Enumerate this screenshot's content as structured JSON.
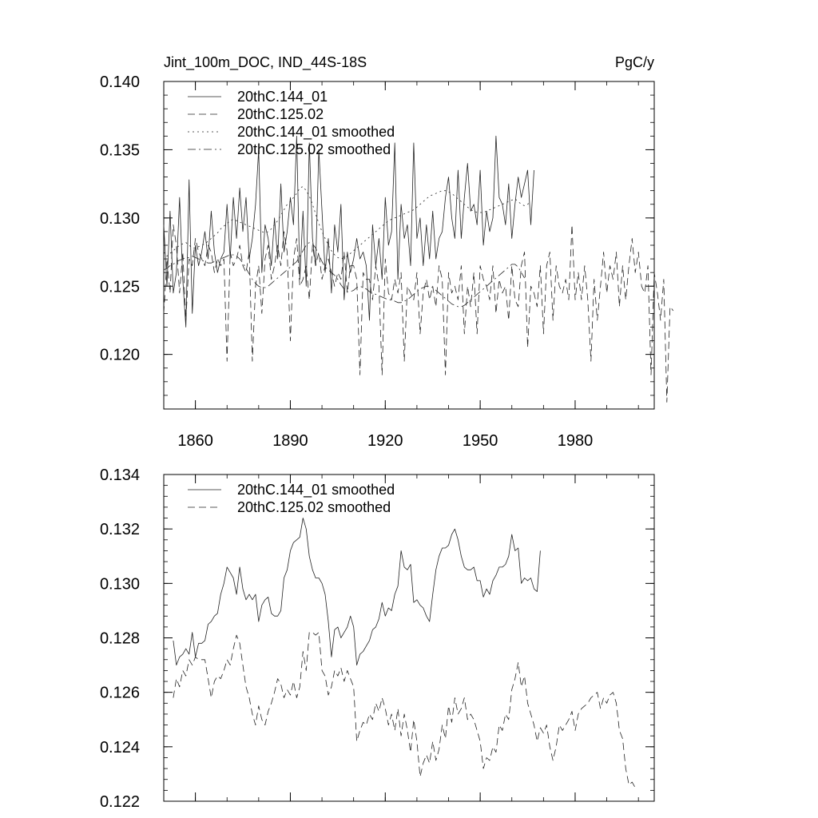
{
  "chart_data": [
    {
      "type": "line",
      "title": "Jint_100m_DOC, IND_44S-18S",
      "units": "PgC/y",
      "xlim": [
        1850,
        2005
      ],
      "ylim": [
        0.116,
        0.14
      ],
      "x_ticks": [
        1860,
        1890,
        1920,
        1950,
        1980
      ],
      "y_ticks": [
        0.12,
        0.125,
        0.13,
        0.135,
        0.14
      ],
      "y_tick_labels": [
        "0.120",
        "0.125",
        "0.130",
        "0.135",
        "0.140"
      ],
      "legend_position": "top-left",
      "series": [
        {
          "name": "20thC.144_01",
          "style": "solid",
          "x_start": 1850,
          "values": [
            0.1295,
            0.125,
            0.1305,
            0.1245,
            0.126,
            0.1315,
            0.1255,
            0.122,
            0.1328,
            0.123,
            0.128,
            0.1265,
            0.1275,
            0.129,
            0.127,
            0.1305,
            0.1275,
            0.126,
            0.127,
            0.1275,
            0.131,
            0.127,
            0.1315,
            0.1285,
            0.1322,
            0.129,
            0.1315,
            0.127,
            0.1285,
            0.131,
            0.135,
            0.126,
            0.1295,
            0.1285,
            0.1265,
            0.13,
            0.127,
            0.1325,
            0.1275,
            0.129,
            0.1315,
            0.1295,
            0.136,
            0.1255,
            0.1305,
            0.125,
            0.1355,
            0.1285,
            0.1265,
            0.135,
            0.1305,
            0.126,
            0.1285,
            0.1245,
            0.1295,
            0.1275,
            0.131,
            0.124,
            0.1275,
            0.126,
            0.127,
            0.1285,
            0.127,
            0.1275,
            0.1265,
            0.1225,
            0.1295,
            0.1265,
            0.1285,
            0.1255,
            0.1315,
            0.128,
            0.129,
            0.1355,
            0.1255,
            0.131,
            0.1285,
            0.1295,
            0.1265,
            0.1355,
            0.1285,
            0.13,
            0.1265,
            0.1295,
            0.127,
            0.1305,
            0.127,
            0.1285,
            0.129,
            0.1315,
            0.133,
            0.13,
            0.1285,
            0.1335,
            0.1285,
            0.1315,
            0.134,
            0.1305,
            0.131,
            0.1295,
            0.1335,
            0.128,
            0.1305,
            0.129,
            0.13,
            0.136,
            0.1315,
            0.131,
            0.1295,
            0.1325,
            0.1285,
            0.131,
            0.133,
            0.1315,
            0.1325,
            0.1335,
            0.1295,
            0.1335
          ]
        },
        {
          "name": "20thC.125.02",
          "style": "dashed",
          "x_start": 1850,
          "values": [
            0.123,
            0.127,
            0.1245,
            0.1295,
            0.128,
            0.1245,
            0.1275,
            0.1225,
            0.127,
            0.1265,
            0.1285,
            0.1275,
            0.127,
            0.1265,
            0.128,
            0.1275,
            0.126,
            0.127,
            0.1265,
            0.127,
            0.1195,
            0.1275,
            0.1265,
            0.127,
            0.128,
            0.1265,
            0.126,
            0.1275,
            0.1195,
            0.125,
            0.1265,
            0.123,
            0.127,
            0.128,
            0.1255,
            0.1265,
            0.128,
            0.1265,
            0.129,
            0.1275,
            0.121,
            0.127,
            0.1285,
            0.125,
            0.1255,
            0.1265,
            0.124,
            0.128,
            0.1265,
            0.1275,
            0.1255,
            0.1265,
            0.127,
            0.126,
            0.125,
            0.126,
            0.1255,
            0.1275,
            0.1245,
            0.1265,
            0.1265,
            0.1255,
            0.1185,
            0.126,
            0.1255,
            0.1255,
            0.124,
            0.1265,
            0.125,
            0.1185,
            0.127,
            0.1245,
            0.124,
            0.1255,
            0.1245,
            0.126,
            0.1195,
            0.125,
            0.1245,
            0.124,
            0.126,
            0.1215,
            0.1245,
            0.1255,
            0.124,
            0.125,
            0.1235,
            0.1265,
            0.1255,
            0.1185,
            0.126,
            0.1245,
            0.125,
            0.124,
            0.1265,
            0.1215,
            0.125,
            0.1235,
            0.126,
            0.1215,
            0.1265,
            0.1255,
            0.125,
            0.124,
            0.1265,
            0.123,
            0.1255,
            0.1245,
            0.125,
            0.1225,
            0.1265,
            0.124,
            0.1235,
            0.1265,
            0.1275,
            0.1205,
            0.125,
            0.1245,
            0.1235,
            0.1265,
            0.1215,
            0.1265,
            0.1275,
            0.1225,
            0.1265,
            0.125,
            0.1245,
            0.1255,
            0.124,
            0.1295,
            0.124,
            0.126,
            0.124,
            0.1265,
            0.124,
            0.1195,
            0.1255,
            0.1225,
            0.125,
            0.1275,
            0.1245,
            0.1265,
            0.1255,
            0.1275,
            0.1235,
            0.1265,
            0.124,
            0.1265,
            0.1285,
            0.126,
            0.1275,
            0.125,
            0.1245,
            0.1265,
            0.1185,
            0.126,
            0.1245,
            0.1225,
            0.1255,
            0.1165,
            0.1235,
            0.1232
          ]
        },
        {
          "name": "20thC.144_01 smoothed",
          "style": "dotted",
          "x_start": 1850,
          "values": [
            0.1275,
            0.1272,
            0.1274,
            0.1276,
            0.1278,
            0.128,
            0.1281,
            0.1282,
            0.128,
            0.1278,
            0.1278,
            0.1279,
            0.128,
            0.1281,
            0.1283,
            0.1285,
            0.1287,
            0.1289,
            0.1292,
            0.1294,
            0.1296,
            0.1298,
            0.1299,
            0.1298,
            0.1297,
            0.1296,
            0.1295,
            0.1294,
            0.1293,
            0.1292,
            0.1291,
            0.129,
            0.1289,
            0.129,
            0.1292,
            0.1295,
            0.1298,
            0.1302,
            0.1306,
            0.131,
            0.1312,
            0.1315,
            0.1318,
            0.1322,
            0.1323,
            0.132,
            0.1316,
            0.131,
            0.1303,
            0.1296,
            0.129,
            0.1285,
            0.128,
            0.1276,
            0.1273,
            0.1271,
            0.127,
            0.1271,
            0.1272,
            0.1274,
            0.1276,
            0.1278,
            0.128,
            0.1282,
            0.1284,
            0.1286,
            0.1288,
            0.129,
            0.1292,
            0.1294,
            0.1296,
            0.1298,
            0.1299,
            0.13,
            0.1301,
            0.1302,
            0.1303,
            0.1304,
            0.1305,
            0.1306,
            0.1308,
            0.131,
            0.1312,
            0.1314,
            0.1316,
            0.1317,
            0.1318,
            0.1319,
            0.132,
            0.132,
            0.1319,
            0.1318,
            0.1316,
            0.1314,
            0.1312,
            0.131,
            0.1308,
            0.1306,
            0.1305,
            0.1304,
            0.1304,
            0.1304,
            0.1305,
            0.1306,
            0.1307,
            0.1308,
            0.1309,
            0.131,
            0.1311,
            0.1312,
            0.1313,
            0.1314,
            0.1312,
            0.131,
            0.1309,
            0.131,
            0.1312
          ]
        },
        {
          "name": "20thC.125.02 smoothed",
          "style": "dashdot",
          "x_start": 1850,
          "values": [
            0.1262,
            0.1263,
            0.1265,
            0.1266,
            0.1268,
            0.1269,
            0.127,
            0.1271,
            0.1271,
            0.1272,
            0.1271,
            0.127,
            0.1269,
            0.1268,
            0.1267,
            0.1267,
            0.1268,
            0.1269,
            0.127,
            0.1271,
            0.1272,
            0.1273,
            0.1273,
            0.1272,
            0.127,
            0.1267,
            0.1263,
            0.1259,
            0.1255,
            0.1252,
            0.125,
            0.1249,
            0.1249,
            0.125,
            0.1252,
            0.1254,
            0.1256,
            0.1258,
            0.126,
            0.1262,
            0.1264,
            0.1266,
            0.1268,
            0.1272,
            0.1276,
            0.128,
            0.1282,
            0.1281,
            0.1278,
            0.1273,
            0.1268,
            0.1264,
            0.1262,
            0.126,
            0.1258,
            0.1255,
            0.1251,
            0.1248,
            0.1246,
            0.1246,
            0.1247,
            0.1249,
            0.125,
            0.1249,
            0.1248,
            0.1246,
            0.1245,
            0.1244,
            0.1243,
            0.1242,
            0.1241,
            0.124,
            0.124,
            0.1239,
            0.1238,
            0.1238,
            0.1239,
            0.124,
            0.1242,
            0.1244,
            0.1246,
            0.1248,
            0.1249,
            0.125,
            0.125,
            0.1249,
            0.1247,
            0.1245,
            0.1243,
            0.1241,
            0.1239,
            0.1237,
            0.1236,
            0.1235,
            0.1235,
            0.1236,
            0.1238,
            0.124,
            0.1242,
            0.1244,
            0.1246,
            0.1248,
            0.125,
            0.1252,
            0.1254,
            0.1256,
            0.1258,
            0.126,
            0.1262,
            0.1264,
            0.1266,
            0.1266,
            0.1264,
            0.126,
            0.1256
          ]
        }
      ]
    },
    {
      "type": "line",
      "xlim": [
        1850,
        2005
      ],
      "ylim": [
        0.122,
        0.134
      ],
      "x_ticks": [
        1860,
        1890,
        1920,
        1950,
        1980
      ],
      "y_ticks": [
        0.122,
        0.124,
        0.126,
        0.128,
        0.13,
        0.132,
        0.134
      ],
      "y_tick_labels": [
        "0.122",
        "0.124",
        "0.126",
        "0.128",
        "0.130",
        "0.132",
        "0.134"
      ],
      "legend_position": "top-left",
      "series": [
        {
          "name": "20thC.144_01 smoothed",
          "style": "solid",
          "x_start": 1853,
          "values": [
            0.1279,
            0.127,
            0.1273,
            0.1274,
            0.1276,
            0.1274,
            0.1282,
            0.1273,
            0.1278,
            0.1278,
            0.1279,
            0.1285,
            0.1286,
            0.1288,
            0.1289,
            0.1296,
            0.13,
            0.1306,
            0.1304,
            0.1302,
            0.1296,
            0.1306,
            0.1298,
            0.1294,
            0.1296,
            0.1294,
            0.1296,
            0.1286,
            0.1292,
            0.1294,
            0.1295,
            0.1289,
            0.1288,
            0.1288,
            0.129,
            0.1302,
            0.1305,
            0.1312,
            0.1315,
            0.1316,
            0.1317,
            0.1324,
            0.132,
            0.131,
            0.1305,
            0.1302,
            0.1302,
            0.13,
            0.1296,
            0.1286,
            0.1273,
            0.1283,
            0.1284,
            0.128,
            0.1282,
            0.1284,
            0.1288,
            0.1284,
            0.127,
            0.1274,
            0.1275,
            0.1277,
            0.1279,
            0.1283,
            0.1284,
            0.1287,
            0.1293,
            0.1288,
            0.1291,
            0.129,
            0.1296,
            0.1299,
            0.1312,
            0.1306,
            0.1305,
            0.1307,
            0.1293,
            0.1294,
            0.1292,
            0.1291,
            0.1288,
            0.1286,
            0.1296,
            0.1305,
            0.131,
            0.1313,
            0.1313,
            0.1314,
            0.1318,
            0.132,
            0.1316,
            0.131,
            0.1306,
            0.1305,
            0.1305,
            0.1306,
            0.1301,
            0.1301,
            0.1295,
            0.1298,
            0.1296,
            0.1301,
            0.1303,
            0.1306,
            0.1306,
            0.1307,
            0.131,
            0.1318,
            0.1312,
            0.1313,
            0.13,
            0.1302,
            0.1301,
            0.1302,
            0.1298,
            0.1297,
            0.1312
          ]
        },
        {
          "name": "20thC.125.02 smoothed",
          "style": "dashed",
          "x_start": 1853,
          "values": [
            0.1258,
            0.1265,
            0.1262,
            0.1268,
            0.1266,
            0.1272,
            0.127,
            0.1273,
            0.1272,
            0.1272,
            0.1272,
            0.1265,
            0.1258,
            0.1264,
            0.1266,
            0.1265,
            0.1268,
            0.1272,
            0.127,
            0.1276,
            0.1281,
            0.1278,
            0.127,
            0.1262,
            0.1258,
            0.1252,
            0.1248,
            0.1255,
            0.125,
            0.1248,
            0.1253,
            0.1256,
            0.126,
            0.1265,
            0.1263,
            0.1258,
            0.1261,
            0.1259,
            0.1264,
            0.1258,
            0.1262,
            0.1275,
            0.1268,
            0.1282,
            0.1282,
            0.1281,
            0.1282,
            0.1268,
            0.1266,
            0.1259,
            0.1262,
            0.1268,
            0.1266,
            0.1269,
            0.1264,
            0.1268,
            0.1265,
            0.1262,
            0.1242,
            0.1246,
            0.1249,
            0.1248,
            0.1252,
            0.125,
            0.1256,
            0.1253,
            0.1258,
            0.1254,
            0.1248,
            0.1252,
            0.1246,
            0.1254,
            0.1244,
            0.1252,
            0.1246,
            0.1238,
            0.125,
            0.1242,
            0.1229,
            0.1234,
            0.1237,
            0.1234,
            0.1242,
            0.1235,
            0.1239,
            0.1248,
            0.1243,
            0.1255,
            0.1249,
            0.1258,
            0.1252,
            0.1254,
            0.1258,
            0.125,
            0.1252,
            0.125,
            0.1246,
            0.1242,
            0.1232,
            0.1236,
            0.1235,
            0.124,
            0.1238,
            0.1248,
            0.1246,
            0.1252,
            0.125,
            0.1261,
            0.1265,
            0.1271,
            0.1262,
            0.1266,
            0.1256,
            0.1252,
            0.1248,
            0.1242,
            0.1247,
            0.1245,
            0.1248,
            0.124,
            0.1235,
            0.124,
            0.1248,
            0.1246,
            0.1248,
            0.125,
            0.1253,
            0.1246,
            0.1252,
            0.1254,
            0.1255,
            0.1256,
            0.1258,
            0.1259,
            0.126,
            0.1254,
            0.1258,
            0.1256,
            0.1259,
            0.126,
            0.1256,
            0.1246,
            0.1243,
            0.1232,
            0.1226,
            0.1227,
            0.1225
          ]
        }
      ]
    }
  ]
}
